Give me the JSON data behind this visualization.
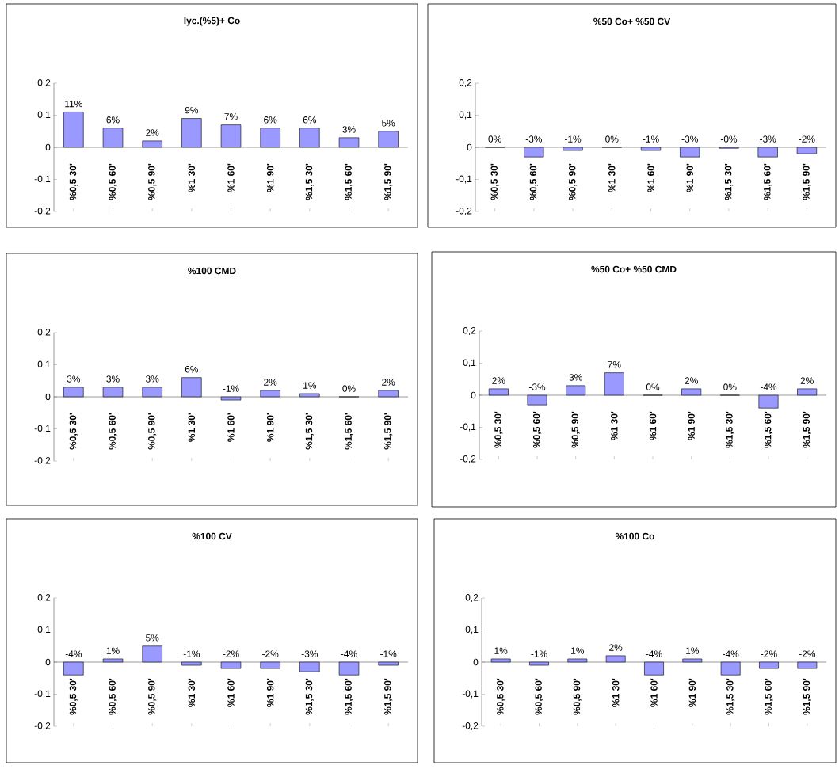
{
  "chart_data": [
    {
      "type": "bar",
      "title": "lyc.(%5)+ Co",
      "categories": [
        "%0,5 30'",
        "%0,5 60'",
        "%0,5 90'",
        "%1 30'",
        "%1 60'",
        "%1 90'",
        "%1,5 30'",
        "%1,5 60'",
        "%1,5 90'"
      ],
      "values": [
        0.11,
        0.06,
        0.02,
        0.09,
        0.07,
        0.06,
        0.06,
        0.03,
        0.05
      ],
      "value_labels": [
        "11%",
        "6%",
        "2%",
        "9%",
        "7%",
        "6%",
        "6%",
        "3%",
        "5%"
      ],
      "color": "#9999ff",
      "ylim": [
        -0.2,
        0.2
      ],
      "yticks": [
        {
          "value": -0.2,
          "label": "-0,2"
        },
        {
          "value": -0.1,
          "label": "-0,1"
        },
        0,
        {
          "value": 0.1,
          "label": "0,1"
        },
        {
          "value": 0.2,
          "label": "0,2"
        }
      ]
    },
    {
      "type": "bar",
      "title": "%50 Co+ %50 CV",
      "categories": [
        "%0,5 30'",
        "%0,5 60'",
        "%0,5 90'",
        "%1 30'",
        "%1 60'",
        "%1 90'",
        "%1,5 30'",
        "%1,5 60'",
        "%1,5 90'"
      ],
      "values": [
        0,
        -0.03,
        -0.01,
        0,
        -0.01,
        -0.03,
        -0.003,
        -0.03,
        -0.02
      ],
      "value_labels": [
        "0%",
        "-3%",
        "-1%",
        "0%",
        "-1%",
        "-3%",
        "-0%",
        "-3%",
        "-2%"
      ],
      "color": "#9999ff",
      "ylim": [
        -0.2,
        0.2
      ],
      "yticks": [
        {
          "value": -0.2,
          "label": "-0,2"
        },
        {
          "value": -0.1,
          "label": "-0,1"
        },
        0,
        {
          "value": 0.1,
          "label": "0,1"
        },
        {
          "value": 0.2,
          "label": "0,2"
        }
      ]
    },
    {
      "type": "bar",
      "title": "%100 CMD",
      "categories": [
        "%0,5 30'",
        "%0,5 60'",
        "%0,5 90'",
        "%1 30'",
        "%1 60'",
        "%1 90'",
        "%1,5 30'",
        "%1,5 60'",
        "%1,5 90'"
      ],
      "values": [
        0.03,
        0.03,
        0.03,
        0.06,
        -0.01,
        0.02,
        0.01,
        0,
        0.02
      ],
      "value_labels": [
        "3%",
        "3%",
        "3%",
        "6%",
        "-1%",
        "2%",
        "1%",
        "0%",
        "2%"
      ],
      "color": "#9999ff",
      "ylim": [
        -0.2,
        0.2
      ],
      "yticks": [
        {
          "value": -0.2,
          "label": "-0,2"
        },
        {
          "value": -0.1,
          "label": "-0,1"
        },
        0,
        {
          "value": 0.1,
          "label": "0,1"
        },
        {
          "value": 0.2,
          "label": "0,2"
        }
      ]
    },
    {
      "type": "bar",
      "title": "%50 Co+ %50 CMD",
      "categories": [
        "%0,5 30'",
        "%0,5 60'",
        "%0,5 90'",
        "%1 30'",
        "%1 60'",
        "%1 90'",
        "%1,5 30'",
        "%1,5 60'",
        "%1,5 90'"
      ],
      "values": [
        0.02,
        -0.03,
        0.03,
        0.07,
        0,
        0.02,
        0,
        -0.04,
        0.02
      ],
      "value_labels": [
        "2%",
        "-3%",
        "3%",
        "7%",
        "0%",
        "2%",
        "0%",
        "-4%",
        "2%"
      ],
      "color": "#9999ff",
      "ylim": [
        -0.2,
        0.2
      ],
      "yticks": [
        {
          "value": -0.2,
          "label": "-0,2"
        },
        {
          "value": -0.1,
          "label": "-0,1"
        },
        0,
        {
          "value": 0.1,
          "label": "0,1"
        },
        {
          "value": 0.2,
          "label": "0,2"
        }
      ]
    },
    {
      "type": "bar",
      "title": "%100 CV",
      "categories": [
        "%0,5 30'",
        "%0,5 60'",
        "%0,5 90'",
        "%1 30'",
        "%1 60'",
        "%1 90'",
        "%1,5 30'",
        "%1,5 60'",
        "%1,5 90'"
      ],
      "values": [
        -0.04,
        0.01,
        0.05,
        -0.01,
        -0.02,
        -0.02,
        -0.03,
        -0.04,
        -0.01
      ],
      "value_labels": [
        "-4%",
        "1%",
        "5%",
        "-1%",
        "-2%",
        "-2%",
        "-3%",
        "-4%",
        "-1%"
      ],
      "color": "#9999ff",
      "ylim": [
        -0.2,
        0.2
      ],
      "yticks": [
        {
          "value": -0.2,
          "label": "-0,2"
        },
        {
          "value": -0.1,
          "label": "-0,1"
        },
        0,
        {
          "value": 0.1,
          "label": "0,1"
        },
        {
          "value": 0.2,
          "label": "0,2"
        }
      ]
    },
    {
      "type": "bar",
      "title": "%100 Co",
      "categories": [
        "%0,5 30'",
        "%0,5 60'",
        "%0,5 90'",
        "%1 30'",
        "%1 60'",
        "%1 90'",
        "%1,5 30'",
        "%1,5 60'",
        "%1,5 90'"
      ],
      "values": [
        0.01,
        -0.01,
        0.01,
        0.02,
        -0.04,
        0.01,
        -0.04,
        -0.02,
        -0.02
      ],
      "value_labels": [
        "1%",
        "-1%",
        "1%",
        "2%",
        "-4%",
        "1%",
        "-4%",
        "-2%",
        "-2%"
      ],
      "color": "#9999ff",
      "ylim": [
        -0.2,
        0.2
      ],
      "yticks": [
        {
          "value": -0.2,
          "label": "-0,2"
        },
        {
          "value": -0.1,
          "label": "-0,1"
        },
        0,
        {
          "value": 0.1,
          "label": "0,1"
        },
        {
          "value": 0.2,
          "label": "0,2"
        }
      ]
    }
  ]
}
